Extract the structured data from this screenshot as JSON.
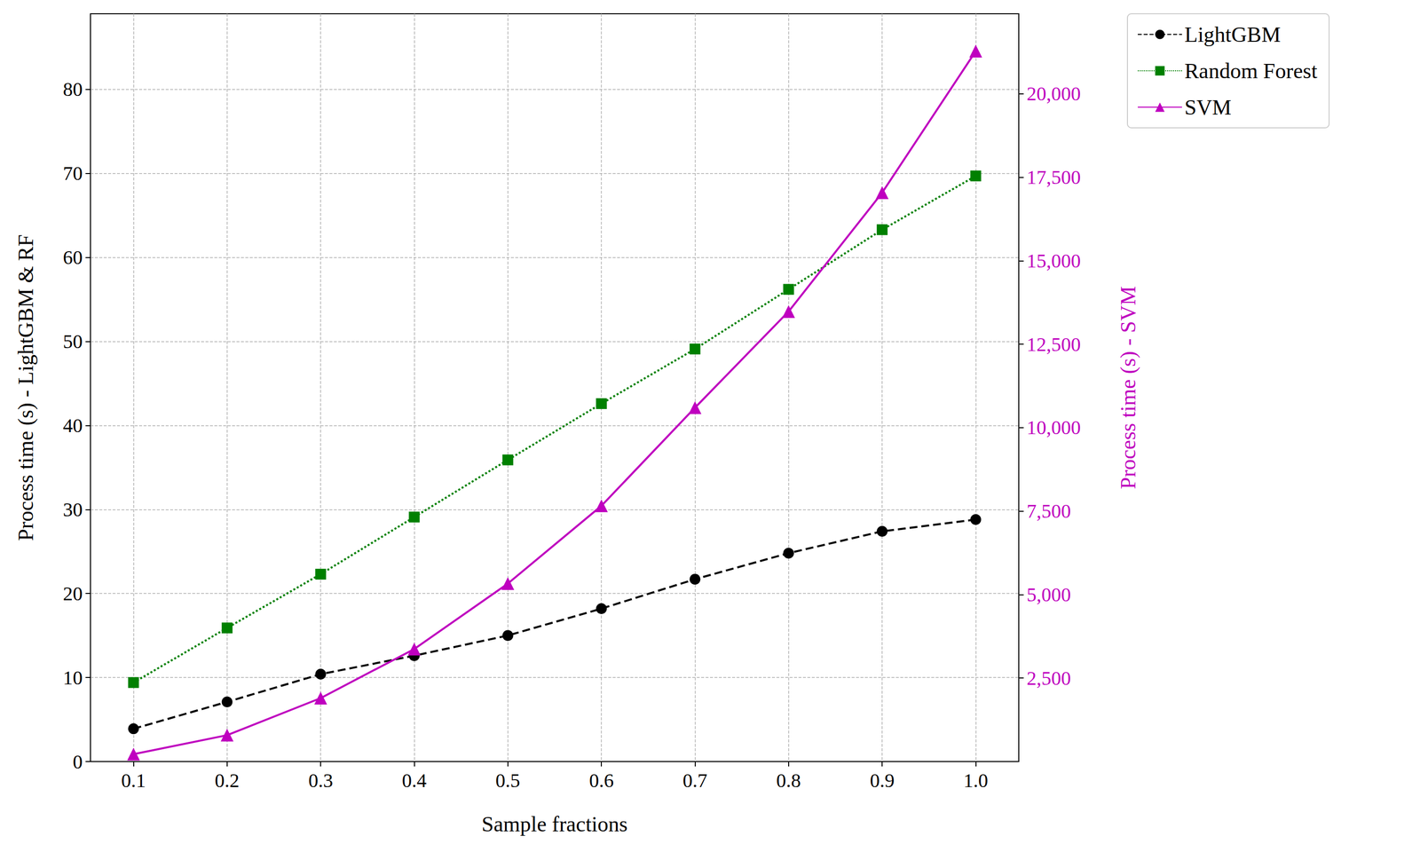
{
  "chart_data": {
    "type": "line",
    "xlabel": "Sample fractions",
    "ylabel": "Process time (s) - LightGBM & RF",
    "y2label": "Process time (s) - SVM",
    "x": [
      0.1,
      0.2,
      0.3,
      0.4,
      0.5,
      0.6,
      0.7,
      0.8,
      0.9,
      1.0
    ],
    "xlim": [
      0.054,
      1.046
    ],
    "xticks": [
      0.1,
      0.2,
      0.3,
      0.4,
      0.5,
      0.6,
      0.7,
      0.8,
      0.9,
      {
        "value": 1.0,
        "label": "1.0"
      }
    ],
    "ylim": [
      0,
      89
    ],
    "yticks": [
      0,
      10,
      20,
      30,
      40,
      50,
      60,
      70,
      80
    ],
    "y2lim": [
      0,
      22400
    ],
    "y2ticks": [
      {
        "value": 2500,
        "label": "2,500"
      },
      {
        "value": 5000,
        "label": "5,000"
      },
      {
        "value": 7500,
        "label": "7,500"
      },
      {
        "value": 10000,
        "label": "10,000"
      },
      {
        "value": 12500,
        "label": "12,500"
      },
      {
        "value": 15000,
        "label": "15,000"
      },
      {
        "value": 17500,
        "label": "17,500"
      },
      {
        "value": 20000,
        "label": "20,000"
      }
    ],
    "grid": true,
    "legend": "upper right",
    "series": [
      {
        "name": "LightGBM",
        "color": "#000000",
        "marker": "circle",
        "line_style": "dashed",
        "axis": "y",
        "values": [
          3.9,
          7.1,
          10.4,
          12.6,
          15.0,
          18.2,
          21.7,
          24.8,
          27.4,
          28.8
        ]
      },
      {
        "name": "Random Forest",
        "color": "#008000",
        "marker": "square",
        "line_style": "dotted",
        "axis": "y",
        "values": [
          9.4,
          15.9,
          22.3,
          29.1,
          35.9,
          42.6,
          49.1,
          56.2,
          63.3,
          69.7
        ]
      },
      {
        "name": "SVM",
        "color": "#bf00bf",
        "marker": "triangle",
        "line_style": "solid",
        "axis": "y2",
        "values": [
          220,
          790,
          1900,
          3370,
          5330,
          7660,
          10600,
          13480,
          17040,
          21280
        ]
      }
    ]
  }
}
